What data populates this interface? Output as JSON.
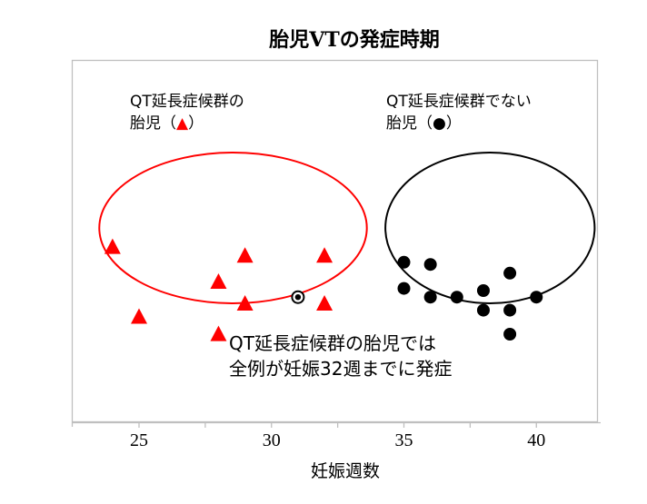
{
  "title": "胎児VTの発症時期",
  "annotations": {
    "lqts_group_line1": "QT延長症候群の",
    "lqts_group_line2_prefix": "胎児（",
    "lqts_group_marker": "▲",
    "lqts_group_line2_suffix": "）",
    "non_lqts_group_line1": "QT延長症候群でない",
    "non_lqts_group_line2_prefix": "胎児（",
    "non_lqts_group_marker": "●",
    "non_lqts_group_line2_suffix": "）",
    "conclusion_line1": "QT延長症候群の胎児では",
    "conclusion_line2": "全例が妊娠32週までに発症"
  },
  "colors": {
    "lqts": "#ff0000",
    "non_lqts": "#000000",
    "frame": "#bfbfbf"
  },
  "chart_data": {
    "type": "scatter",
    "title": "胎児VTの発症時期",
    "xlabel": "妊娠週数",
    "ylabel": "",
    "xlim": [
      22.5,
      42.5
    ],
    "xticks": [
      25,
      30,
      35,
      40
    ],
    "xtick_labels": [
      "25",
      "30",
      "35",
      "40"
    ],
    "minor_xticks": [
      27.5,
      32.5,
      37.5
    ],
    "grid": false,
    "legend": "inline text annotations",
    "series": [
      {
        "name": "QT延長症候群の胎児",
        "marker": "triangle",
        "color": "#ff0000",
        "points": [
          {
            "x": 24,
            "y": 0.7
          },
          {
            "x": 25,
            "y": 0.38
          },
          {
            "x": 28,
            "y": 0.54
          },
          {
            "x": 28,
            "y": 0.3
          },
          {
            "x": 29,
            "y": 0.66
          },
          {
            "x": 29,
            "y": 0.44
          },
          {
            "x": 32,
            "y": 0.66
          },
          {
            "x": 32,
            "y": 0.44
          }
        ]
      },
      {
        "name": "QT延長症候群でない胎児",
        "marker": "circle",
        "color": "#000000",
        "points": [
          {
            "x": 31,
            "y": 0.47,
            "style": "bullseye"
          },
          {
            "x": 35,
            "y": 0.63
          },
          {
            "x": 35,
            "y": 0.51
          },
          {
            "x": 36,
            "y": 0.62
          },
          {
            "x": 36,
            "y": 0.47
          },
          {
            "x": 37,
            "y": 0.47
          },
          {
            "x": 38,
            "y": 0.5
          },
          {
            "x": 38,
            "y": 0.41
          },
          {
            "x": 39,
            "y": 0.58
          },
          {
            "x": 39,
            "y": 0.41
          },
          {
            "x": 39,
            "y": 0.3
          },
          {
            "x": 40,
            "y": 0.47
          }
        ]
      }
    ],
    "group_ellipses": [
      {
        "group": "QT延長症候群の胎児",
        "color": "#ff0000",
        "x_range": [
          23.5,
          33.6
        ]
      },
      {
        "group": "QT延長症候群でない胎児",
        "color": "#000000",
        "x_range": [
          34.3,
          42.2
        ]
      }
    ]
  }
}
